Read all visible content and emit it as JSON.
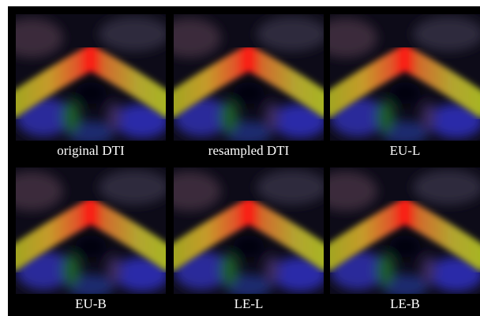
{
  "panels": [
    {
      "label": "original DTI"
    },
    {
      "label": "resampled DTI"
    },
    {
      "label": "EU-L"
    },
    {
      "label": "EU-B"
    },
    {
      "label": "LE-L"
    },
    {
      "label": "LE-B"
    }
  ]
}
